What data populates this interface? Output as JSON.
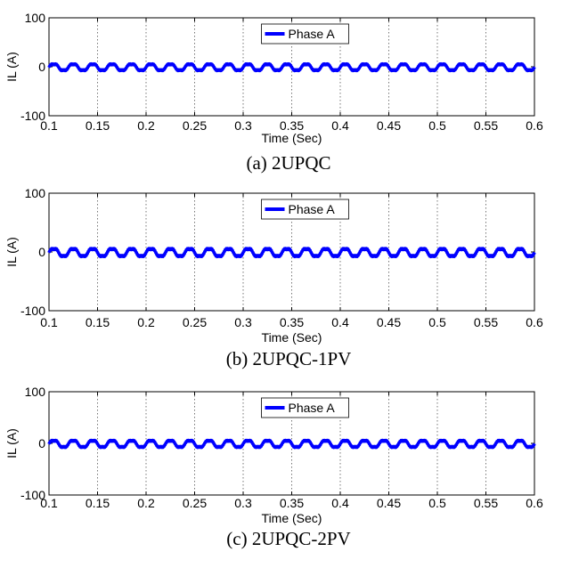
{
  "chart_data": [
    {
      "type": "line",
      "caption": "(a) 2UPQC",
      "xlabel": "Time (Sec)",
      "ylabel": "IL (A)",
      "xlim": [
        0.1,
        0.6
      ],
      "ylim": [
        -100,
        100
      ],
      "xticks": [
        "0.1",
        "0.15",
        "0.2",
        "0.25",
        "0.3",
        "0.35",
        "0.4",
        "0.45",
        "0.5",
        "0.55",
        "0.6"
      ],
      "yticks": [
        "-100",
        "0",
        "100"
      ],
      "grid": "vertical-dotted",
      "legend": {
        "position": "top-center",
        "entries": [
          "Phase A"
        ]
      },
      "series": [
        {
          "name": "Phase A",
          "color": "#0000ff",
          "frequency_hz": 50,
          "amplitude": 7,
          "offset": -1,
          "harmonic": 0.18
        }
      ]
    },
    {
      "type": "line",
      "caption": "(b) 2UPQC-1PV",
      "xlabel": "Time (Sec)",
      "ylabel": "IL (A)",
      "xlim": [
        0.1,
        0.6
      ],
      "ylim": [
        -100,
        100
      ],
      "xticks": [
        "0.1",
        "0.15",
        "0.2",
        "0.25",
        "0.3",
        "0.35",
        "0.4",
        "0.45",
        "0.5",
        "0.55",
        "0.6"
      ],
      "yticks": [
        "-100",
        "0",
        "100"
      ],
      "grid": "vertical-dotted",
      "legend": {
        "position": "top-center",
        "entries": [
          "Phase A"
        ]
      },
      "series": [
        {
          "name": "Phase A",
          "color": "#0000ff",
          "frequency_hz": 50,
          "amplitude": 7,
          "offset": -1,
          "harmonic": 0.18
        }
      ]
    },
    {
      "type": "line",
      "caption": "(c) 2UPQC-2PV",
      "xlabel": "Time (Sec)",
      "ylabel": "IL (A)",
      "xlim": [
        0.1,
        0.6
      ],
      "ylim": [
        -100,
        100
      ],
      "xticks": [
        "0.1",
        "0.15",
        "0.2",
        "0.25",
        "0.3",
        "0.35",
        "0.4",
        "0.45",
        "0.5",
        "0.55",
        "0.6"
      ],
      "yticks": [
        "-100",
        "0",
        "100"
      ],
      "grid": "vertical-dotted",
      "legend": {
        "position": "top-center",
        "entries": [
          "Phase A"
        ]
      },
      "series": [
        {
          "name": "Phase A",
          "color": "#0000ff",
          "frequency_hz": 50,
          "amplitude": 7,
          "offset": -1,
          "harmonic": 0.18
        }
      ]
    }
  ]
}
